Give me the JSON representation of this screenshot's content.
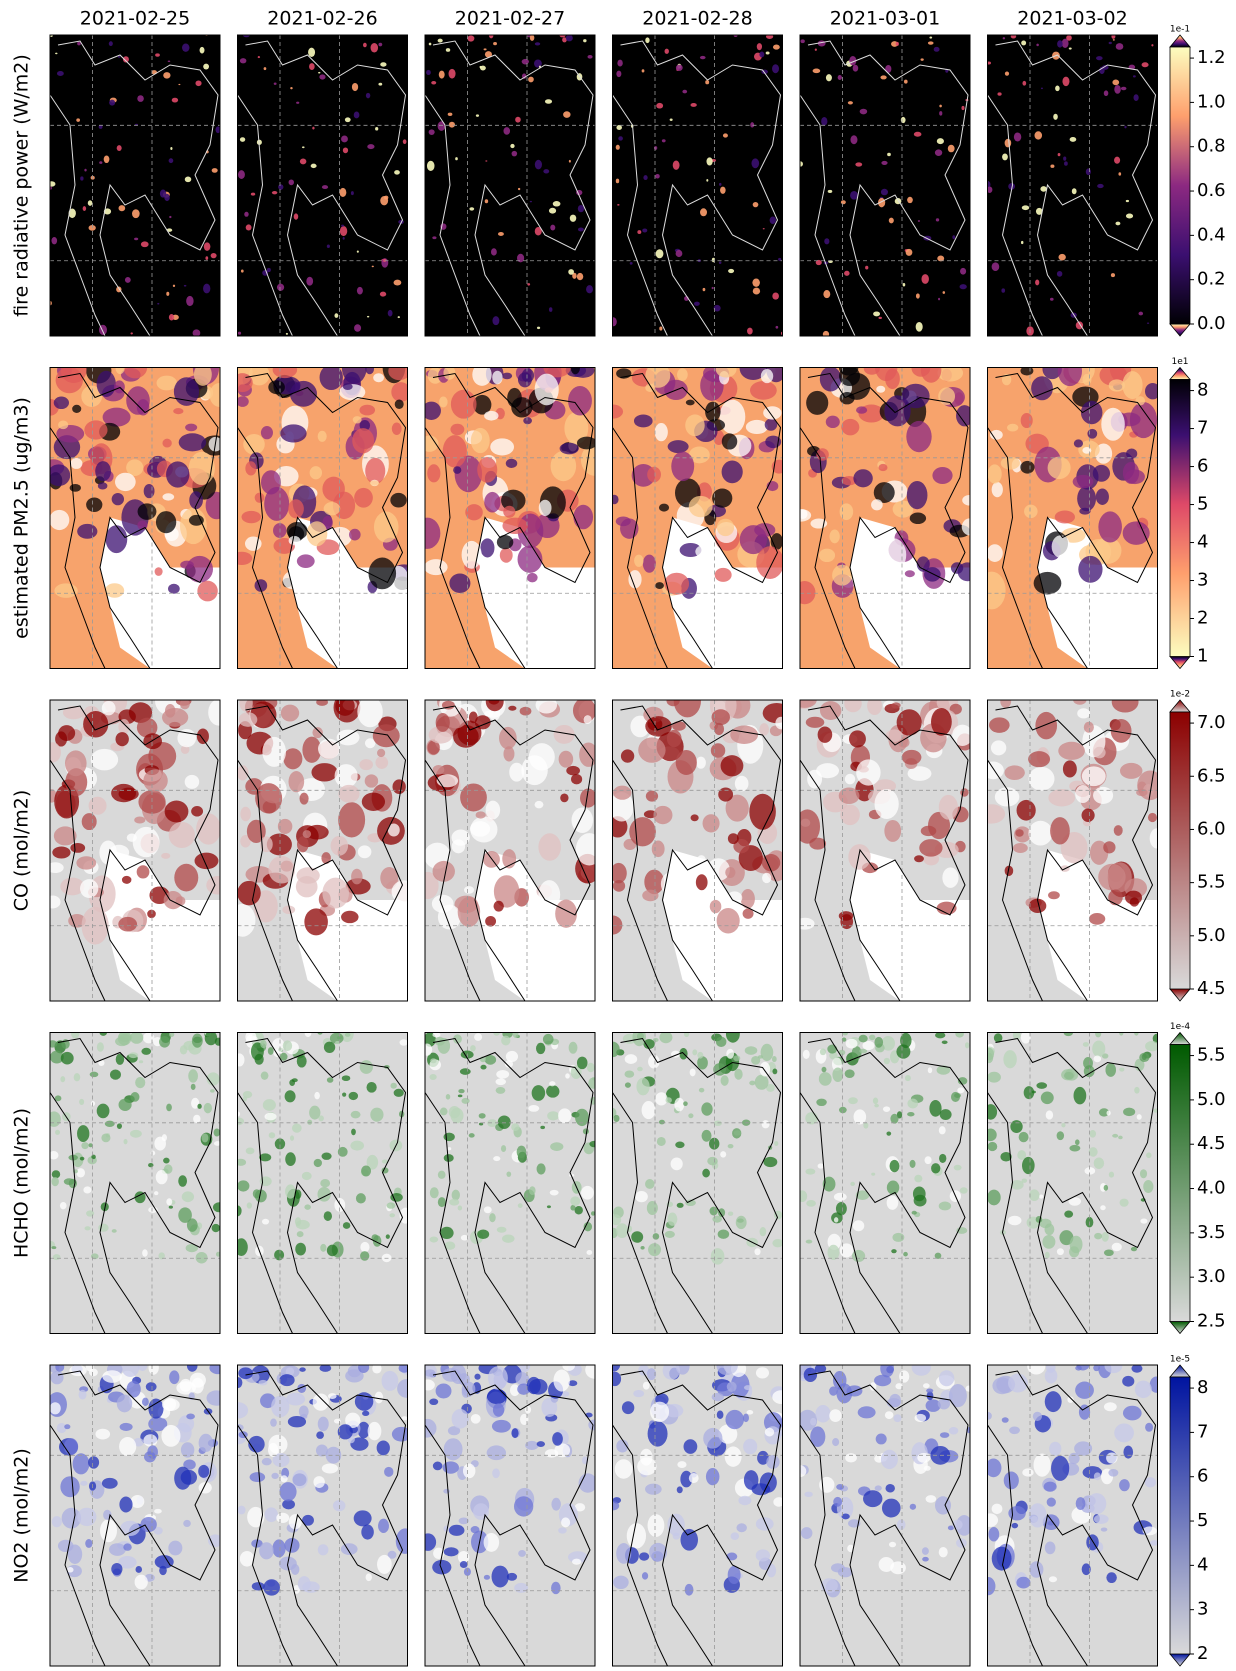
{
  "columns": [
    "2021-02-25",
    "2021-02-26",
    "2021-02-27",
    "2021-02-28",
    "2021-03-01",
    "2021-03-02"
  ],
  "rows": [
    {
      "label": "fire radiative power (W/m2)",
      "scale": "1e-1",
      "ticks": [
        "0.0",
        "0.2",
        "0.4",
        "0.6",
        "0.8",
        "1.0",
        "1.2"
      ]
    },
    {
      "label": "estimated PM2.5 (ug/m3)",
      "scale": "1e1",
      "ticks": [
        "1",
        "2",
        "3",
        "4",
        "5",
        "6",
        "7",
        "8"
      ]
    },
    {
      "label": "CO (mol/m2)",
      "scale": "1e-2",
      "ticks": [
        "4.5",
        "5.0",
        "5.5",
        "6.0",
        "6.5",
        "7.0"
      ]
    },
    {
      "label": "HCHO (mol/m2)",
      "scale": "1e-4",
      "ticks": [
        "2.5",
        "3.0",
        "3.5",
        "4.0",
        "4.5",
        "5.0",
        "5.5"
      ]
    },
    {
      "label": "NO2 (mol/m2)",
      "scale": "1e-5",
      "ticks": [
        "2",
        "3",
        "4",
        "5",
        "6",
        "7",
        "8"
      ]
    }
  ]
}
